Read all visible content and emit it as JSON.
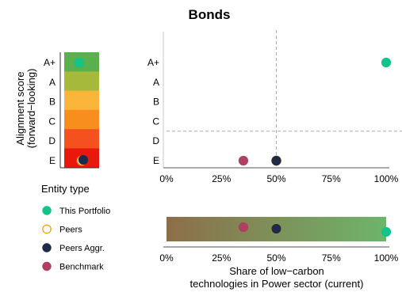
{
  "chart_data": {
    "type": "scatter",
    "title": "Bonds",
    "score_axis": {
      "label": "Alignment score\n(forward−looking)",
      "grades": [
        "A+",
        "A",
        "B",
        "C",
        "D",
        "E"
      ],
      "colors": [
        "#5ab04d",
        "#a7b93a",
        "#fbb53a",
        "#f78e1e",
        "#f4511e",
        "#e8180c"
      ]
    },
    "x_axis": {
      "label": "Share of low−carbon\ntechnologies in Power sector (current)",
      "ticks": [
        "0%",
        "25%",
        "50%",
        "75%",
        "100%"
      ],
      "tick_values": [
        0,
        25,
        50,
        75,
        100
      ],
      "range": [
        0,
        100
      ]
    },
    "reference_lines": {
      "x": 50,
      "grade_between": [
        "C",
        "D"
      ]
    },
    "gradient_colors": [
      "#8d6e49",
      "#6db56a"
    ],
    "legend": {
      "title": "Entity type",
      "entries": [
        {
          "label": "This Portfolio",
          "key": "portfolio"
        },
        {
          "label": "Peers",
          "key": "peers"
        },
        {
          "label": "Peers Aggr.",
          "key": "peers_aggr"
        },
        {
          "label": "Benchmark",
          "key": "benchmark"
        }
      ]
    },
    "series": [
      {
        "name": "This Portfolio",
        "key": "portfolio",
        "x": 100,
        "grade": "A+",
        "fill": "#10c48a",
        "stroke": "#10c48a"
      },
      {
        "name": "Peers",
        "key": "peers",
        "x": 50,
        "grade": "E",
        "fill": "#ffffff",
        "stroke": "#f7a21b"
      },
      {
        "name": "Peers Aggr.",
        "key": "peers_aggr",
        "x": 50,
        "grade": "E",
        "fill": "#1c2b4a",
        "stroke": "#1c2b4a"
      },
      {
        "name": "Benchmark",
        "key": "benchmark",
        "x": 35,
        "grade": "E",
        "fill": "#b13f5f",
        "stroke": "#b13f5f"
      }
    ]
  }
}
